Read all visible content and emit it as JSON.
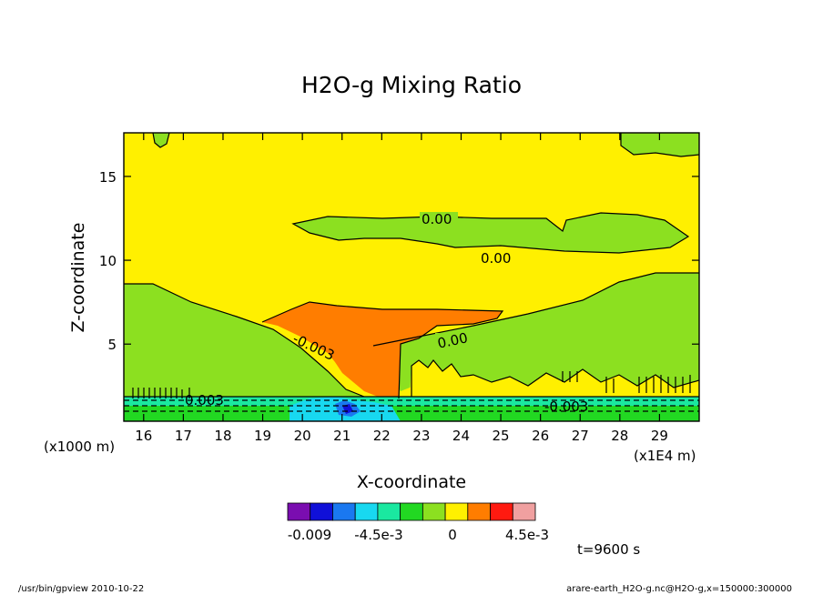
{
  "chart_data": {
    "type": "contour",
    "title": "H2O-g Mixing Ratio",
    "xlabel": "X-coordinate",
    "ylabel": "Z-coordinate",
    "xlim": [
      15.5,
      30
    ],
    "ylim": [
      0.4,
      17.6
    ],
    "x_ticks": [
      16,
      17,
      18,
      19,
      20,
      21,
      22,
      23,
      24,
      25,
      26,
      27,
      28,
      29
    ],
    "y_ticks": [
      5,
      10,
      15
    ],
    "x_unit_left": "(x1000 m)",
    "x_unit_right": "(x1E4 m)",
    "colorbar": {
      "colors": [
        "#7a0db0",
        "#1010d8",
        "#1a78f0",
        "#18d8f0",
        "#1ae8a0",
        "#22d822",
        "#8ce020",
        "#fff000",
        "#ff7d00",
        "#ff1a10",
        "#f0a0a0"
      ],
      "tick_labels": [
        "-0.009",
        "-4.5e-3",
        "0",
        "4.5e-3"
      ]
    },
    "contour_labels": [
      "0.00",
      "0.00",
      "0.00",
      "0.003",
      "-0.003",
      "-0.003"
    ],
    "time_label": "t=9600 s"
  },
  "footer": {
    "left": "/usr/bin/gpview   2010-10-22",
    "right": "arare-earth_H2O-g.nc@H2O-g,x=150000:300000"
  }
}
